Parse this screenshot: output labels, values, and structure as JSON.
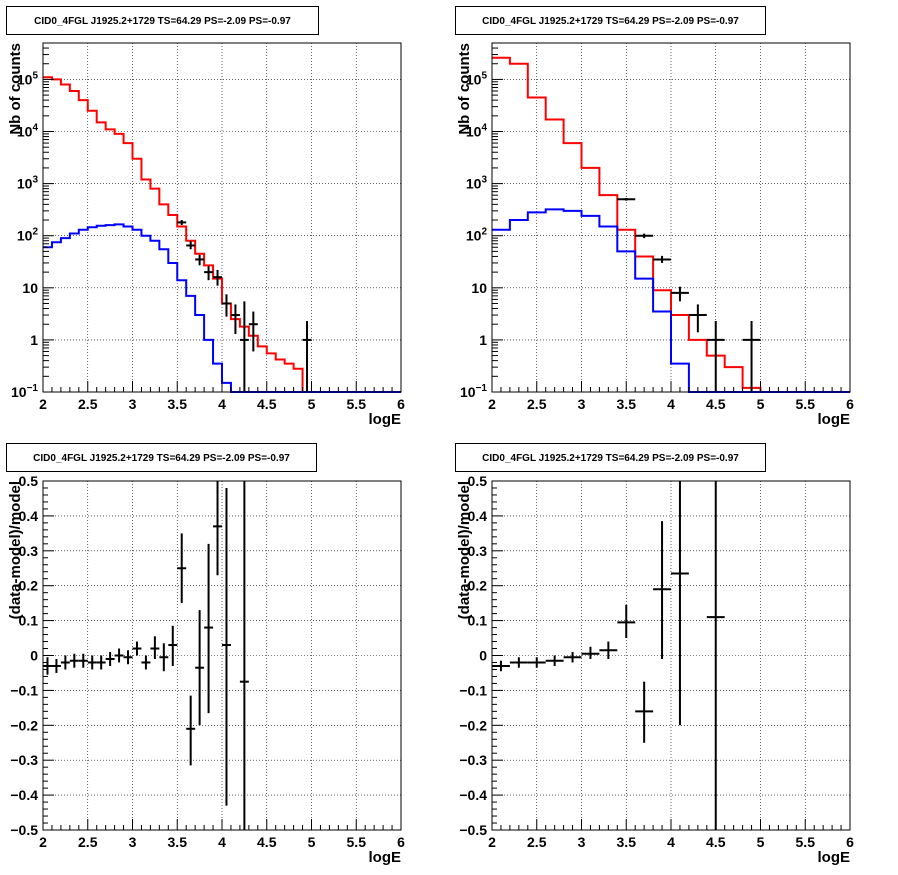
{
  "chart_data": [
    {
      "type": "line",
      "title": "CID0_4FGL J1925.2+1729 TS=64.29 PS=-2.09 PS=-0.97",
      "xlabel": "logE",
      "ylabel": "Nb of counts",
      "xlim": [
        2,
        6
      ],
      "ylim": [
        0.1,
        500000
      ],
      "yscale": "log",
      "grid": true,
      "xticks": [
        "2",
        "2.5",
        "3",
        "3.5",
        "4",
        "4.5",
        "5",
        "5.5",
        "6"
      ],
      "yticks": [
        {
          "v": 0.1,
          "label": "10",
          "sup": "−1"
        },
        {
          "v": 1,
          "label": "1",
          "sup": ""
        },
        {
          "v": 10,
          "label": "10",
          "sup": ""
        },
        {
          "v": 100,
          "label": "10",
          "sup": "2"
        },
        {
          "v": 1000,
          "label": "10",
          "sup": "3"
        },
        {
          "v": 10000,
          "label": "10",
          "sup": "4"
        },
        {
          "v": 100000,
          "label": "10",
          "sup": "5"
        }
      ],
      "hists": [
        {
          "color": "#ff0000",
          "bin_width": 0.1,
          "edges": [
            2.0,
            2.1,
            2.2,
            2.3,
            2.4,
            2.5,
            2.6,
            2.7,
            2.8,
            2.9,
            3.0,
            3.1,
            3.2,
            3.3,
            3.4,
            3.5,
            3.6,
            3.7,
            3.8,
            3.9,
            4.0,
            4.1,
            4.2,
            4.3,
            4.4,
            4.5,
            4.6,
            4.7,
            4.8,
            4.9,
            5.0
          ],
          "values": [
            110000,
            100000,
            80000,
            60000,
            40000,
            25000,
            15000,
            11000,
            9000,
            6000,
            3000,
            1200,
            800,
            400,
            250,
            150,
            80,
            45,
            27,
            15,
            5,
            2.5,
            1.8,
            1.2,
            0.75,
            0.55,
            0.42,
            0.35,
            0.28,
            0.1
          ]
        },
        {
          "color": "#0000ff",
          "bin_width": 0.1,
          "edges": [
            2.0,
            2.1,
            2.2,
            2.3,
            2.4,
            2.5,
            2.6,
            2.7,
            2.8,
            2.9,
            3.0,
            3.1,
            3.2,
            3.3,
            3.4,
            3.5,
            3.6,
            3.7,
            3.8,
            3.9,
            4.0,
            4.1
          ],
          "values": [
            60,
            75,
            90,
            110,
            130,
            145,
            155,
            160,
            165,
            150,
            130,
            100,
            80,
            55,
            30,
            14,
            7,
            3,
            1,
            0.35,
            0.15,
            0.1
          ]
        }
      ],
      "points": [
        {
          "x": 3.55,
          "y": 180,
          "ylo": 160,
          "yhi": 200,
          "xerr": 0.05
        },
        {
          "x": 3.65,
          "y": 65,
          "ylo": 55,
          "yhi": 78,
          "xerr": 0.05
        },
        {
          "x": 3.75,
          "y": 35,
          "ylo": 27,
          "yhi": 43,
          "xerr": 0.05
        },
        {
          "x": 3.85,
          "y": 20,
          "ylo": 14,
          "yhi": 26,
          "xerr": 0.05
        },
        {
          "x": 3.95,
          "y": 16,
          "ylo": 11,
          "yhi": 22,
          "xerr": 0.05
        },
        {
          "x": 4.05,
          "y": 5,
          "ylo": 2.8,
          "yhi": 7.5,
          "xerr": 0.05
        },
        {
          "x": 4.15,
          "y": 3,
          "ylo": 1.3,
          "yhi": 4.8,
          "xerr": 0.05
        },
        {
          "x": 4.25,
          "y": 1,
          "ylo": 0.1,
          "yhi": 5.5,
          "xerr": 0.05
        },
        {
          "x": 4.35,
          "y": 2,
          "ylo": 0.6,
          "yhi": 3.5,
          "xerr": 0.05
        },
        {
          "x": 4.95,
          "y": 1,
          "ylo": 0.1,
          "yhi": 2.3,
          "xerr": 0.05
        }
      ]
    },
    {
      "type": "line",
      "title": "CID0_4FGL J1925.2+1729 TS=64.29 PS=-2.09 PS=-0.97",
      "xlabel": "logE",
      "ylabel": "Nb of counts",
      "xlim": [
        2,
        6
      ],
      "ylim": [
        0.1,
        500000
      ],
      "yscale": "log",
      "grid": true,
      "xticks": [
        "2",
        "2.5",
        "3",
        "3.5",
        "4",
        "4.5",
        "5",
        "5.5",
        "6"
      ],
      "yticks": [
        {
          "v": 0.1,
          "label": "10",
          "sup": "−1"
        },
        {
          "v": 1,
          "label": "1",
          "sup": ""
        },
        {
          "v": 10,
          "label": "10",
          "sup": ""
        },
        {
          "v": 100,
          "label": "10",
          "sup": "2"
        },
        {
          "v": 1000,
          "label": "10",
          "sup": "3"
        },
        {
          "v": 10000,
          "label": "10",
          "sup": "4"
        },
        {
          "v": 100000,
          "label": "10",
          "sup": "5"
        }
      ],
      "hists": [
        {
          "color": "#ff0000",
          "bin_width": 0.2,
          "edges": [
            2.0,
            2.2,
            2.4,
            2.6,
            2.8,
            3.0,
            3.2,
            3.4,
            3.6,
            3.8,
            4.0,
            4.2,
            4.4,
            4.6,
            4.8,
            5.0
          ],
          "values": [
            260000,
            200000,
            45000,
            17000,
            6000,
            2000,
            600,
            130,
            40,
            9,
            3,
            1,
            0.5,
            0.3,
            0.12
          ]
        },
        {
          "color": "#0000ff",
          "bin_width": 0.2,
          "edges": [
            2.0,
            2.2,
            2.4,
            2.6,
            2.8,
            3.0,
            3.2,
            3.4,
            3.6,
            3.8,
            4.0,
            4.2
          ],
          "values": [
            130,
            200,
            280,
            320,
            300,
            240,
            150,
            50,
            15,
            3.5,
            0.35,
            0.1
          ]
        }
      ],
      "points": [
        {
          "x": 3.5,
          "y": 500,
          "ylo": 470,
          "yhi": 530,
          "xerr": 0.1
        },
        {
          "x": 3.7,
          "y": 100,
          "ylo": 90,
          "yhi": 110,
          "xerr": 0.1
        },
        {
          "x": 3.9,
          "y": 35,
          "ylo": 30,
          "yhi": 41,
          "xerr": 0.1
        },
        {
          "x": 4.1,
          "y": 8,
          "ylo": 5.5,
          "yhi": 10.5,
          "xerr": 0.1
        },
        {
          "x": 4.3,
          "y": 3,
          "ylo": 1.4,
          "yhi": 4.8,
          "xerr": 0.1
        },
        {
          "x": 4.5,
          "y": 1,
          "ylo": 0.1,
          "yhi": 2.3,
          "xerr": 0.1
        },
        {
          "x": 4.9,
          "y": 1,
          "ylo": 0.1,
          "yhi": 2.3,
          "xerr": 0.1
        }
      ]
    },
    {
      "type": "scatter",
      "title": "CID0_4FGL J1925.2+1729 TS=64.29 PS=-2.09 PS=-0.97",
      "xlabel": "logE",
      "ylabel": "(data-model)/model",
      "xlim": [
        2,
        6
      ],
      "ylim": [
        -0.5,
        0.5
      ],
      "yscale": "linear",
      "grid": true,
      "xticks": [
        "2",
        "2.5",
        "3",
        "3.5",
        "4",
        "4.5",
        "5",
        "5.5",
        "6"
      ],
      "yticks": [
        {
          "v": -0.5,
          "label": "−0.5"
        },
        {
          "v": -0.4,
          "label": "−0.4"
        },
        {
          "v": -0.3,
          "label": "−0.3"
        },
        {
          "v": -0.2,
          "label": "−0.2"
        },
        {
          "v": -0.1,
          "label": "−0.1"
        },
        {
          "v": 0,
          "label": "0"
        },
        {
          "v": 0.1,
          "label": "0.1"
        },
        {
          "v": 0.2,
          "label": "0.2"
        },
        {
          "v": 0.3,
          "label": "0.3"
        },
        {
          "v": 0.4,
          "label": "0.4"
        },
        {
          "v": 0.5,
          "label": "0.5"
        }
      ],
      "points": [
        {
          "x": 2.05,
          "y": -0.03,
          "ylo": -0.055,
          "yhi": -0.005,
          "xerr": 0.05
        },
        {
          "x": 2.15,
          "y": -0.03,
          "ylo": -0.05,
          "yhi": -0.01,
          "xerr": 0.05
        },
        {
          "x": 2.25,
          "y": -0.02,
          "ylo": -0.04,
          "yhi": 0.0,
          "xerr": 0.05
        },
        {
          "x": 2.35,
          "y": -0.015,
          "ylo": -0.035,
          "yhi": 0.005,
          "xerr": 0.05
        },
        {
          "x": 2.45,
          "y": -0.015,
          "ylo": -0.035,
          "yhi": 0.005,
          "xerr": 0.05
        },
        {
          "x": 2.55,
          "y": -0.02,
          "ylo": -0.04,
          "yhi": 0.0,
          "xerr": 0.05
        },
        {
          "x": 2.65,
          "y": -0.02,
          "ylo": -0.04,
          "yhi": 0.0,
          "xerr": 0.05
        },
        {
          "x": 2.75,
          "y": -0.01,
          "ylo": -0.03,
          "yhi": 0.01,
          "xerr": 0.05
        },
        {
          "x": 2.85,
          "y": 0.0,
          "ylo": -0.02,
          "yhi": 0.02,
          "xerr": 0.05
        },
        {
          "x": 2.95,
          "y": -0.005,
          "ylo": -0.025,
          "yhi": 0.015,
          "xerr": 0.05
        },
        {
          "x": 3.05,
          "y": 0.02,
          "ylo": 0.0,
          "yhi": 0.04,
          "xerr": 0.05
        },
        {
          "x": 3.15,
          "y": -0.02,
          "ylo": -0.04,
          "yhi": 0.0,
          "xerr": 0.05
        },
        {
          "x": 3.25,
          "y": 0.02,
          "ylo": -0.01,
          "yhi": 0.055,
          "xerr": 0.05
        },
        {
          "x": 3.35,
          "y": -0.005,
          "ylo": -0.045,
          "yhi": 0.035,
          "xerr": 0.05
        },
        {
          "x": 3.45,
          "y": 0.03,
          "ylo": -0.03,
          "yhi": 0.085,
          "xerr": 0.05
        },
        {
          "x": 3.55,
          "y": 0.25,
          "ylo": 0.15,
          "yhi": 0.35,
          "xerr": 0.05
        },
        {
          "x": 3.65,
          "y": -0.21,
          "ylo": -0.315,
          "yhi": -0.115,
          "xerr": 0.05
        },
        {
          "x": 3.75,
          "y": -0.035,
          "ylo": -0.2,
          "yhi": 0.13,
          "xerr": 0.05
        },
        {
          "x": 3.85,
          "y": 0.08,
          "ylo": -0.165,
          "yhi": 0.32,
          "xerr": 0.05
        },
        {
          "x": 3.95,
          "y": 0.37,
          "ylo": 0.23,
          "yhi": 0.5,
          "xerr": 0.05
        },
        {
          "x": 4.05,
          "y": 0.03,
          "ylo": -0.43,
          "yhi": 0.48,
          "xerr": 0.05
        },
        {
          "x": 4.25,
          "y": -0.075,
          "ylo": -0.5,
          "yhi": 0.5,
          "xerr": 0.05
        }
      ]
    },
    {
      "type": "scatter",
      "title": "CID0_4FGL J1925.2+1729 TS=64.29 PS=-2.09 PS=-0.97",
      "xlabel": "logE",
      "ylabel": "(data-model)/model",
      "xlim": [
        2,
        6
      ],
      "ylim": [
        -0.5,
        0.5
      ],
      "yscale": "linear",
      "grid": true,
      "xticks": [
        "2",
        "2.5",
        "3",
        "3.5",
        "4",
        "4.5",
        "5",
        "5.5",
        "6"
      ],
      "yticks": [
        {
          "v": -0.5,
          "label": "−0.5"
        },
        {
          "v": -0.4,
          "label": "−0.4"
        },
        {
          "v": -0.3,
          "label": "−0.3"
        },
        {
          "v": -0.2,
          "label": "−0.2"
        },
        {
          "v": -0.1,
          "label": "−0.1"
        },
        {
          "v": 0,
          "label": "0"
        },
        {
          "v": 0.1,
          "label": "0.1"
        },
        {
          "v": 0.2,
          "label": "0.2"
        },
        {
          "v": 0.3,
          "label": "0.3"
        },
        {
          "v": 0.4,
          "label": "0.4"
        },
        {
          "v": 0.5,
          "label": "0.5"
        }
      ],
      "points": [
        {
          "x": 2.1,
          "y": -0.03,
          "ylo": -0.045,
          "yhi": -0.015,
          "xerr": 0.1
        },
        {
          "x": 2.3,
          "y": -0.02,
          "ylo": -0.035,
          "yhi": -0.005,
          "xerr": 0.1
        },
        {
          "x": 2.5,
          "y": -0.02,
          "ylo": -0.035,
          "yhi": -0.005,
          "xerr": 0.1
        },
        {
          "x": 2.7,
          "y": -0.015,
          "ylo": -0.03,
          "yhi": 0.0,
          "xerr": 0.1
        },
        {
          "x": 2.9,
          "y": -0.005,
          "ylo": -0.02,
          "yhi": 0.01,
          "xerr": 0.1
        },
        {
          "x": 3.1,
          "y": 0.005,
          "ylo": -0.01,
          "yhi": 0.025,
          "xerr": 0.1
        },
        {
          "x": 3.3,
          "y": 0.015,
          "ylo": -0.01,
          "yhi": 0.04,
          "xerr": 0.1
        },
        {
          "x": 3.5,
          "y": 0.095,
          "ylo": 0.05,
          "yhi": 0.145,
          "xerr": 0.1
        },
        {
          "x": 3.7,
          "y": -0.16,
          "ylo": -0.25,
          "yhi": -0.075,
          "xerr": 0.1
        },
        {
          "x": 3.9,
          "y": 0.19,
          "ylo": -0.01,
          "yhi": 0.385,
          "xerr": 0.1
        },
        {
          "x": 4.1,
          "y": 0.235,
          "ylo": -0.2,
          "yhi": 0.5,
          "xerr": 0.1
        },
        {
          "x": 4.5,
          "y": 0.11,
          "ylo": -0.5,
          "yhi": 0.5,
          "xerr": 0.1
        }
      ]
    }
  ]
}
